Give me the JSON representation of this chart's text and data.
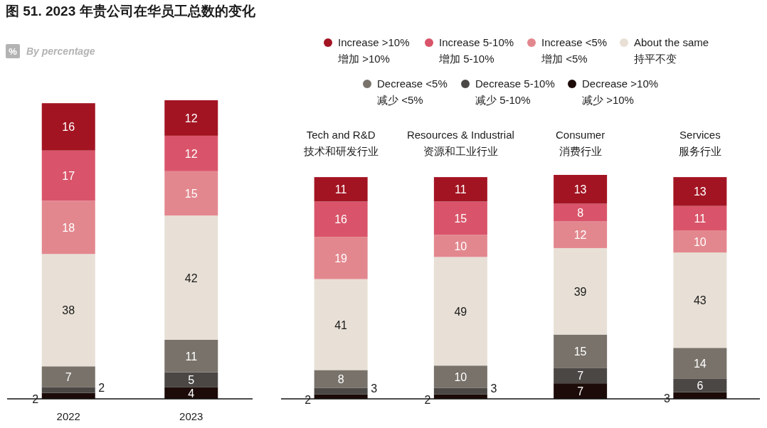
{
  "chart_data": [
    {
      "type": "bar",
      "stacked": true,
      "data_labels": true,
      "legend": false,
      "title": "图 51. 2023 年贵公司在华员工总数的变化",
      "subtitle": "% By percentage",
      "categories": [
        "2022",
        "2023"
      ],
      "series": [
        {
          "color": "#1c0b08",
          "values": [
            2,
            4
          ]
        },
        {
          "color": "#4a4745",
          "values": [
            2,
            5
          ]
        },
        {
          "color": "#78726a",
          "values": [
            7,
            11
          ]
        },
        {
          "color": "#e8e0d6",
          "values": [
            38,
            42
          ]
        },
        {
          "color": "#e3878e",
          "values": [
            18,
            15
          ]
        },
        {
          "color": "#d9546a",
          "values": [
            17,
            12
          ]
        },
        {
          "color": "#a31422",
          "values": [
            16,
            12
          ]
        }
      ]
    },
    {
      "type": "bar",
      "stacked": true,
      "data_labels": true,
      "legend": "top",
      "categories": [
        "Tech and R&D\n技术和研发行业",
        "Resources & Industrial\n资源和工业行业",
        "Consumer\n消费行业",
        "Services\n服务行业"
      ],
      "series": [
        {
          "name": "Decrease >10%\n减少 >10%",
          "color": "#1c0b08",
          "values": [
            2,
            2,
            7,
            3
          ]
        },
        {
          "name": "Decrease 5-10%\n减少 5-10%",
          "color": "#4a4745",
          "values": [
            3,
            3,
            7,
            6
          ]
        },
        {
          "name": "Decrease <5%\n减少 <5%",
          "color": "#78726a",
          "values": [
            8,
            10,
            15,
            14
          ]
        },
        {
          "name": "About the same\n持平不变",
          "color": "#e8e0d6",
          "values": [
            41,
            49,
            39,
            43
          ]
        },
        {
          "name": "Increase <5%\n增加 <5%",
          "color": "#e3878e",
          "values": [
            19,
            10,
            12,
            10
          ]
        },
        {
          "name": "Increase 5-10%\n增加 5-10%",
          "color": "#d9546a",
          "values": [
            16,
            15,
            8,
            11
          ]
        },
        {
          "name": "Increase >10%\n增加 >10%",
          "color": "#a31422",
          "values": [
            11,
            11,
            13,
            13
          ]
        }
      ]
    }
  ]
}
